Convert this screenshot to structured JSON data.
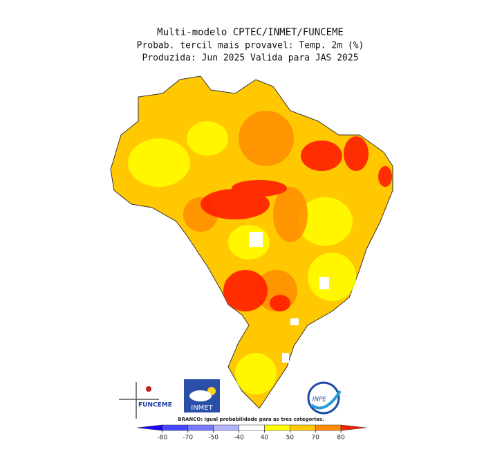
{
  "header": {
    "title": "Multi-modelo CPTEC/INMET/FUNCEME",
    "subtitle": "Probab. tercil mais provavel: Temp. 2m (%)",
    "produced": "Produzida: Jun 2025  Valida para JAS 2025"
  },
  "logos": {
    "funceme": "FUNCEME",
    "inmet": "INMET",
    "inpe": "INPE"
  },
  "note": "BRANCO: igual probabilidade para as tres categorias.",
  "colorbar": {
    "ticks": [
      -80,
      -70,
      -50,
      -40,
      40,
      50,
      70,
      80
    ],
    "colors": [
      "#1e00ff",
      "#4646ff",
      "#7878ff",
      "#b4b4ff",
      "#ffffff",
      "#ffff00",
      "#ffc800",
      "#ff8c00",
      "#ff1e00"
    ]
  }
}
